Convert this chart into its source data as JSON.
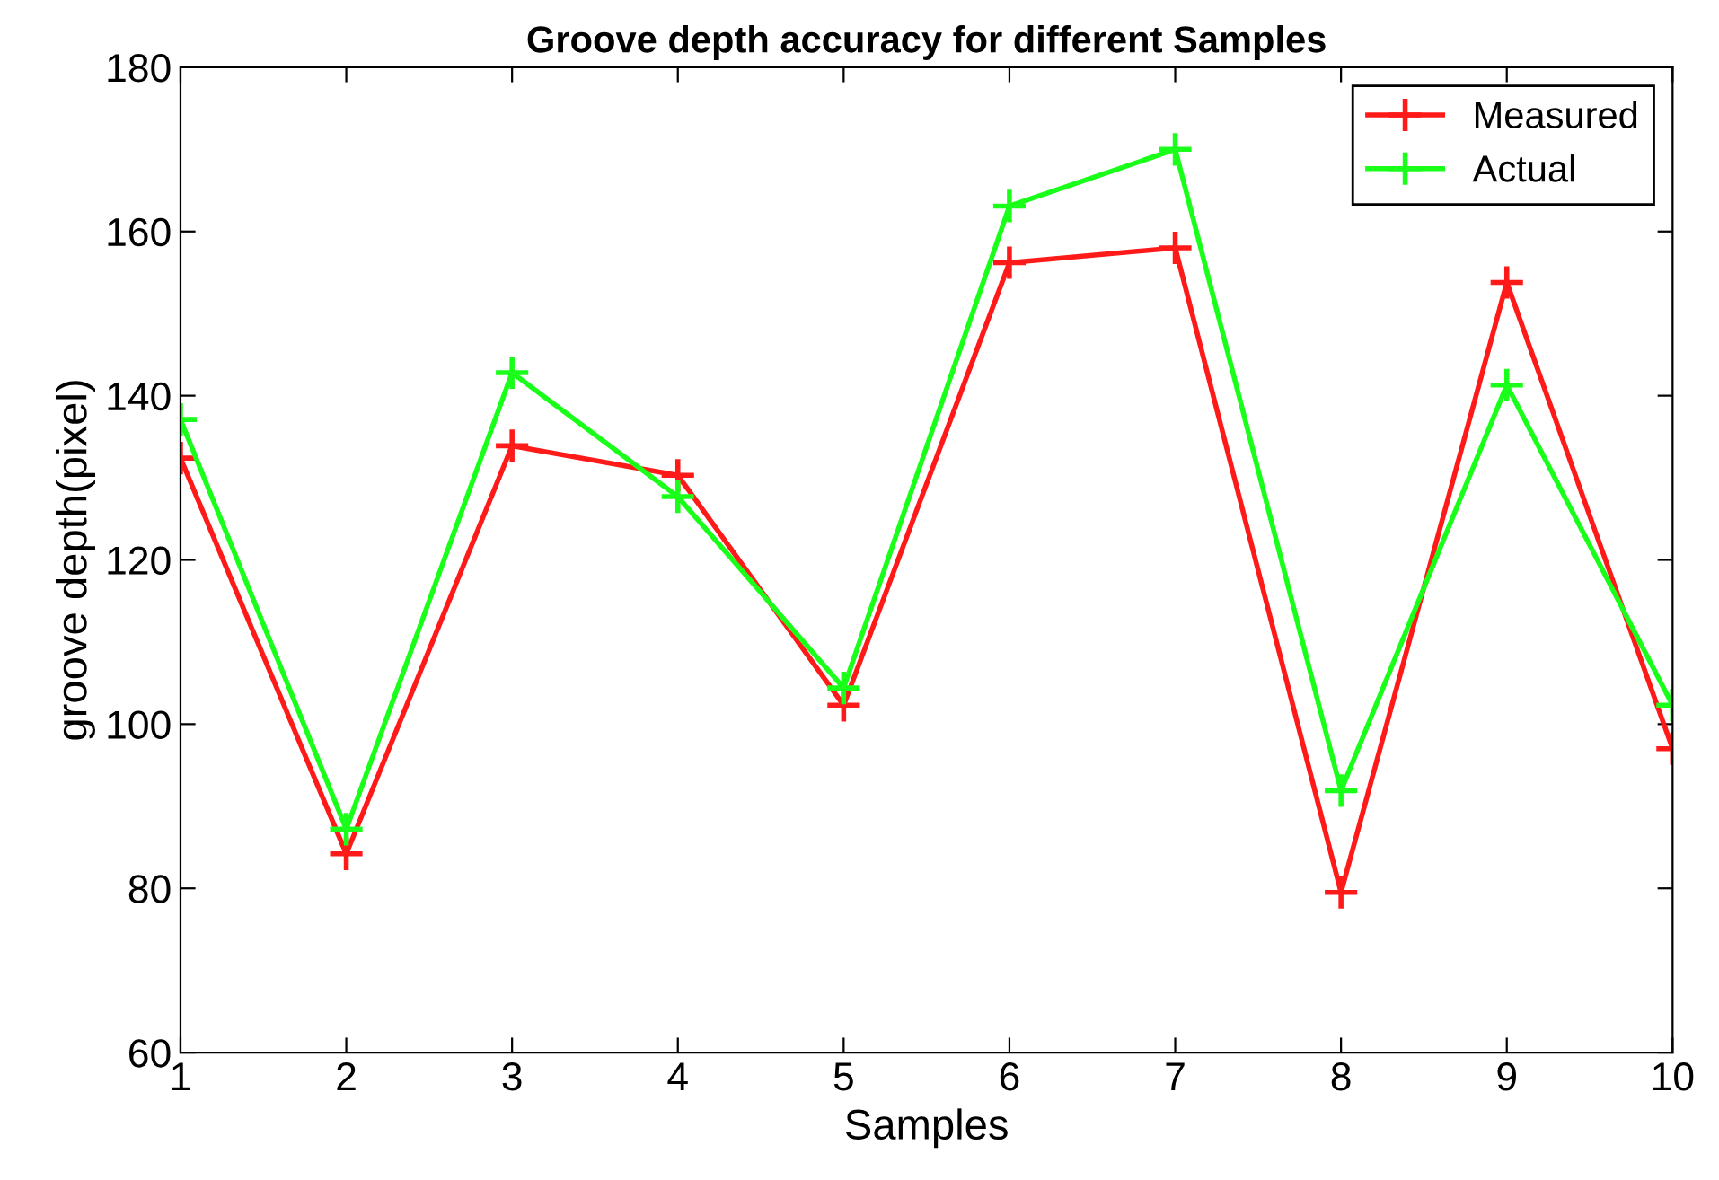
{
  "chart_data": {
    "type": "line",
    "title": "Groove depth accuracy for different Samples",
    "xlabel": "Samples",
    "ylabel": "groove depth(pixel)",
    "x": [
      1,
      2,
      3,
      4,
      5,
      6,
      7,
      8,
      9,
      10
    ],
    "series": [
      {
        "name": "Measured",
        "color": "#ff1a1a",
        "values": [
          132.4,
          84.2,
          133.9,
          130.3,
          102.3,
          156.2,
          158.0,
          79.5,
          153.8,
          97.0
        ]
      },
      {
        "name": "Actual",
        "color": "#1aff1a",
        "values": [
          137.1,
          87.2,
          142.8,
          127.7,
          104.4,
          163.1,
          170.0,
          91.9,
          141.3,
          102.3
        ]
      }
    ],
    "xlim": [
      1,
      10
    ],
    "xticks": [
      1,
      2,
      3,
      4,
      5,
      6,
      7,
      8,
      9,
      10
    ],
    "ylim": [
      60,
      180
    ],
    "yticks": [
      60,
      80,
      100,
      120,
      140,
      160,
      180
    ],
    "marker": "cross",
    "line_style": "solid",
    "grid": false,
    "legend": "top right"
  }
}
